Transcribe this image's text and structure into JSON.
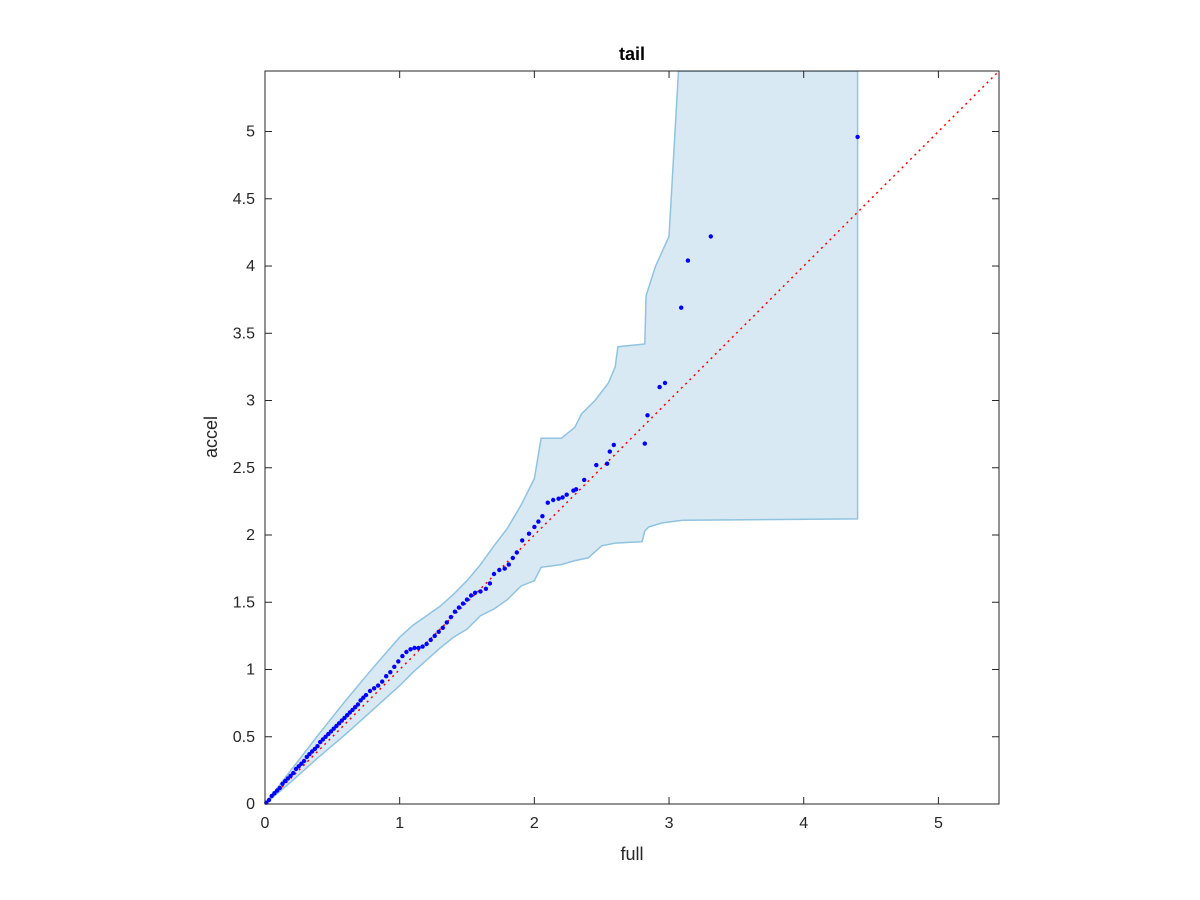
{
  "chart_data": {
    "type": "scatter",
    "title": "tail",
    "xlabel": "full",
    "ylabel": "accel",
    "xlim": [
      0,
      5.45
    ],
    "ylim": [
      0,
      5.45
    ],
    "xticks": [
      0,
      1,
      2,
      3,
      4,
      5
    ],
    "yticks": [
      0,
      0.5,
      1,
      1.5,
      2,
      2.5,
      3,
      3.5,
      4,
      4.5,
      5
    ],
    "grid": false,
    "legend": "none",
    "colors": {
      "points": "#0000ff",
      "reference_line": "#ff0000",
      "band_fill": "#d8e9f4",
      "band_edge": "#8fc3e0"
    },
    "reference_line": {
      "x": [
        0,
        5.45
      ],
      "y": [
        0,
        5.45
      ],
      "style": "dotted"
    },
    "confidence_band": {
      "upper": [
        [
          0,
          0
        ],
        [
          0.2,
          0.26
        ],
        [
          0.4,
          0.52
        ],
        [
          0.6,
          0.77
        ],
        [
          0.8,
          1.01
        ],
        [
          1.0,
          1.24
        ],
        [
          1.1,
          1.33
        ],
        [
          1.2,
          1.4
        ],
        [
          1.3,
          1.47
        ],
        [
          1.4,
          1.56
        ],
        [
          1.5,
          1.66
        ],
        [
          1.6,
          1.78
        ],
        [
          1.7,
          1.92
        ],
        [
          1.8,
          2.05
        ],
        [
          1.9,
          2.22
        ],
        [
          2.0,
          2.42
        ],
        [
          2.05,
          2.72
        ],
        [
          2.2,
          2.72
        ],
        [
          2.3,
          2.8
        ],
        [
          2.35,
          2.9
        ],
        [
          2.45,
          3.0
        ],
        [
          2.55,
          3.13
        ],
        [
          2.6,
          3.25
        ],
        [
          2.62,
          3.4
        ],
        [
          2.82,
          3.42
        ],
        [
          2.83,
          3.78
        ],
        [
          2.9,
          4.0
        ],
        [
          3.0,
          4.22
        ],
        [
          3.07,
          5.45
        ],
        [
          4.4,
          5.45
        ]
      ],
      "lower": [
        [
          4.4,
          2.12
        ],
        [
          3.1,
          2.11
        ],
        [
          2.95,
          2.09
        ],
        [
          2.85,
          2.06
        ],
        [
          2.82,
          2.03
        ],
        [
          2.8,
          1.95
        ],
        [
          2.6,
          1.94
        ],
        [
          2.5,
          1.92
        ],
        [
          2.4,
          1.83
        ],
        [
          2.3,
          1.81
        ],
        [
          2.2,
          1.78
        ],
        [
          2.05,
          1.76
        ],
        [
          2.0,
          1.66
        ],
        [
          1.9,
          1.62
        ],
        [
          1.8,
          1.52
        ],
        [
          1.7,
          1.45
        ],
        [
          1.6,
          1.4
        ],
        [
          1.5,
          1.3
        ],
        [
          1.4,
          1.24
        ],
        [
          1.3,
          1.16
        ],
        [
          1.2,
          1.07
        ],
        [
          1.1,
          0.98
        ],
        [
          1.0,
          0.88
        ],
        [
          0.8,
          0.7
        ],
        [
          0.6,
          0.52
        ],
        [
          0.4,
          0.35
        ],
        [
          0.2,
          0.17
        ],
        [
          0,
          0
        ]
      ]
    },
    "series": [
      {
        "x": [
          0.01,
          0.03,
          0.05,
          0.07,
          0.09,
          0.11,
          0.13,
          0.15,
          0.17,
          0.19,
          0.21,
          0.23,
          0.25,
          0.27,
          0.29,
          0.31,
          0.33,
          0.35,
          0.37,
          0.39,
          0.41,
          0.43,
          0.45,
          0.47,
          0.49,
          0.51,
          0.53,
          0.55,
          0.57,
          0.59,
          0.61,
          0.63,
          0.65,
          0.67,
          0.69,
          0.71,
          0.73,
          0.75,
          0.78,
          0.81,
          0.84,
          0.87,
          0.9,
          0.93,
          0.96,
          0.99,
          1.02,
          1.05,
          1.08,
          1.11,
          1.14,
          1.17,
          1.2,
          1.23,
          1.26,
          1.29,
          1.32,
          1.35,
          1.38,
          1.41,
          1.44,
          1.47,
          1.5,
          1.53,
          1.56,
          1.6,
          1.64,
          1.67,
          1.7,
          1.74,
          1.78,
          1.81,
          1.84,
          1.87,
          1.91,
          1.96,
          2.0,
          2.03,
          2.06,
          2.1,
          2.14,
          2.18,
          2.21,
          2.24,
          2.29,
          2.31,
          2.37,
          2.46,
          2.54,
          2.56,
          2.59,
          2.82,
          2.84,
          2.93,
          2.97,
          3.09,
          3.14,
          3.31,
          4.4
        ],
        "y": [
          0.01,
          0.03,
          0.06,
          0.08,
          0.1,
          0.12,
          0.15,
          0.17,
          0.19,
          0.21,
          0.23,
          0.26,
          0.28,
          0.3,
          0.32,
          0.35,
          0.37,
          0.39,
          0.41,
          0.43,
          0.46,
          0.48,
          0.5,
          0.52,
          0.54,
          0.56,
          0.58,
          0.6,
          0.62,
          0.64,
          0.66,
          0.68,
          0.7,
          0.72,
          0.74,
          0.77,
          0.79,
          0.81,
          0.84,
          0.86,
          0.88,
          0.91,
          0.95,
          0.98,
          1.02,
          1.06,
          1.1,
          1.13,
          1.15,
          1.16,
          1.16,
          1.17,
          1.19,
          1.22,
          1.25,
          1.28,
          1.31,
          1.35,
          1.39,
          1.43,
          1.46,
          1.49,
          1.52,
          1.55,
          1.57,
          1.58,
          1.6,
          1.64,
          1.71,
          1.74,
          1.75,
          1.78,
          1.83,
          1.87,
          1.96,
          2.01,
          2.06,
          2.1,
          2.14,
          2.24,
          2.26,
          2.27,
          2.28,
          2.3,
          2.33,
          2.34,
          2.41,
          2.52,
          2.53,
          2.62,
          2.67,
          2.68,
          2.89,
          3.1,
          3.13,
          3.69,
          4.04,
          4.22,
          4.96
        ]
      }
    ]
  }
}
